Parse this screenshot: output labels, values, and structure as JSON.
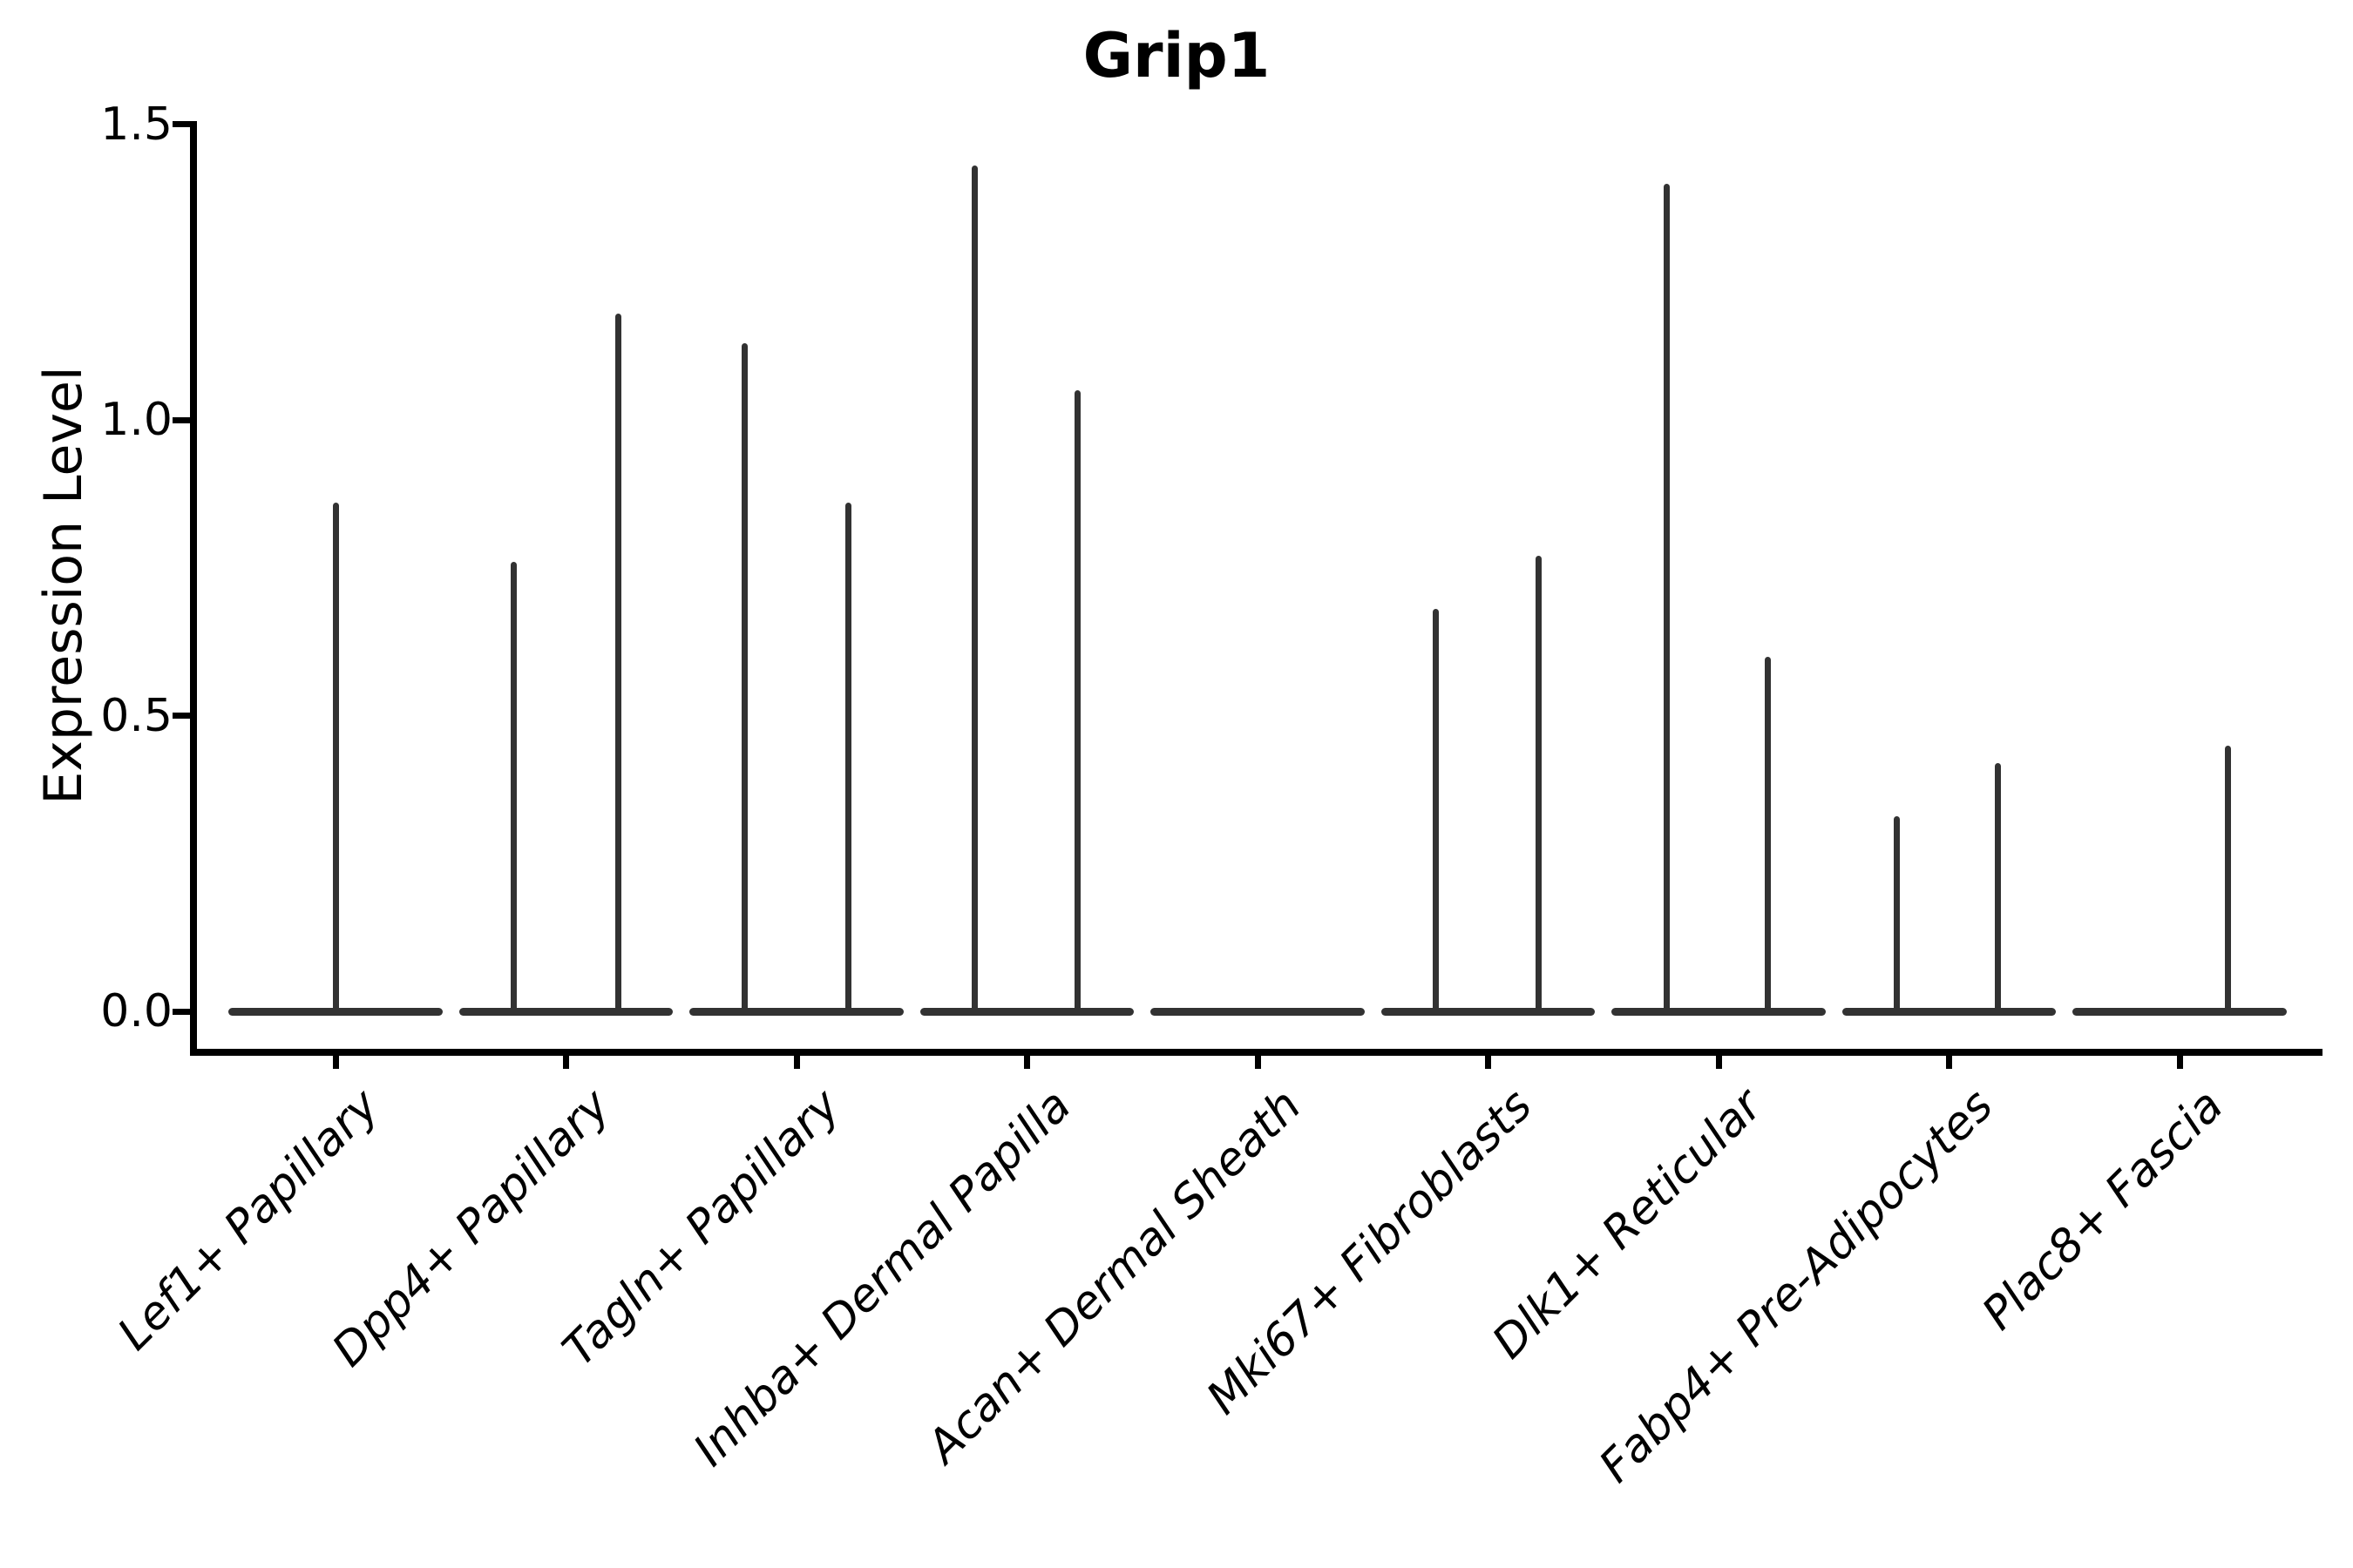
{
  "title": "Grip1",
  "ylabel": "Expression Level",
  "colors": {
    "violin": "#323232",
    "axis": "#000000",
    "text": "#000000",
    "background": "#ffffff"
  },
  "chart_data": {
    "type": "violin",
    "title": "Grip1",
    "xlabel": "",
    "ylabel": "Expression Level",
    "ylim": [
      0,
      1.5
    ],
    "yticks": [
      0.0,
      0.5,
      1.0,
      1.5
    ],
    "ytick_labels": [
      "0.0",
      "0.5",
      "1.0",
      "1.5"
    ],
    "grid": false,
    "legend": null,
    "x_tick_label_style": "italic, rotated 45 degrees",
    "categories": [
      "Lef1+ Papillary",
      "Dpp4+ Papillary",
      "Tagln+ Papillary",
      "Inhba+ Dermal Papilla",
      "Acan+ Dermal Sheath",
      "Mki67+ Fibroblasts",
      "Dlk1+ Reticular",
      "Fabp4+ Pre-Adipocytes",
      "Plac8+ Fascia"
    ],
    "violin_width_fraction": 0.93,
    "violins": [
      {
        "category": "Lef1+ Papillary",
        "base_at": 0.0,
        "spikes": [
          {
            "offset": 0.0,
            "max": 0.86
          }
        ]
      },
      {
        "category": "Dpp4+ Papillary",
        "base_at": 0.0,
        "spikes": [
          {
            "offset": -0.225,
            "max": 0.76
          },
          {
            "offset": 0.225,
            "max": 1.18
          }
        ]
      },
      {
        "category": "Tagln+ Papillary",
        "base_at": 0.0,
        "spikes": [
          {
            "offset": -0.225,
            "max": 1.13
          },
          {
            "offset": 0.225,
            "max": 0.86
          }
        ]
      },
      {
        "category": "Inhba+ Dermal Papilla",
        "base_at": 0.0,
        "spikes": [
          {
            "offset": -0.225,
            "max": 1.43
          },
          {
            "offset": 0.22,
            "max": 1.05
          }
        ]
      },
      {
        "category": "Acan+ Dermal Sheath",
        "base_at": 0.0,
        "spikes": []
      },
      {
        "category": "Mki67+ Fibroblasts",
        "base_at": 0.0,
        "spikes": [
          {
            "offset": -0.225,
            "max": 0.68
          },
          {
            "offset": 0.22,
            "max": 0.77
          }
        ]
      },
      {
        "category": "Dlk1+ Reticular",
        "base_at": 0.0,
        "spikes": [
          {
            "offset": -0.225,
            "max": 1.4
          },
          {
            "offset": 0.215,
            "max": 0.6
          }
        ]
      },
      {
        "category": "Fabp4+ Pre-Adipocytes",
        "base_at": 0.0,
        "spikes": [
          {
            "offset": -0.225,
            "max": 0.33
          },
          {
            "offset": 0.21,
            "max": 0.42
          }
        ]
      },
      {
        "category": "Plac8+ Fascia",
        "base_at": 0.0,
        "spikes": [
          {
            "offset": 0.21,
            "max": 0.45
          }
        ]
      }
    ]
  }
}
